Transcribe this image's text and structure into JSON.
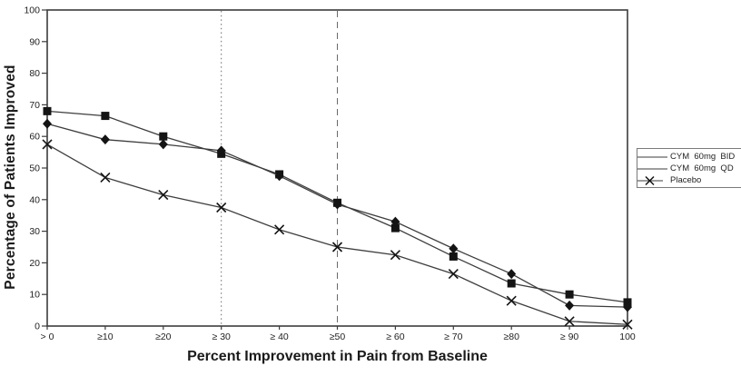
{
  "chart_data": {
    "type": "line",
    "title": "",
    "xlabel": "Percent Improvement in Pain from Baseline",
    "ylabel": "Percentage of Patients Improved",
    "categories": [
      "> 0",
      "≥10",
      "≥20",
      "≥ 30",
      "≥ 40",
      "≥50",
      "≥ 60",
      "≥ 70",
      "≥80",
      "≥ 90",
      "100"
    ],
    "series": [
      {
        "name": "CYM  60mg  BID",
        "marker": "square",
        "values": [
          68,
          66.5,
          60,
          54.5,
          48,
          39,
          31,
          22,
          13.5,
          10,
          7.5
        ]
      },
      {
        "name": "CYM  60mg  QD",
        "marker": "diamond",
        "values": [
          64,
          59,
          57.5,
          55.5,
          47.5,
          38.5,
          33,
          24.5,
          16.5,
          6.5,
          6
        ]
      },
      {
        "name": "Placebo",
        "marker": "x",
        "values": [
          57.5,
          47,
          41.5,
          37.5,
          30.5,
          25,
          22.5,
          16.5,
          8,
          1.5,
          0.5
        ]
      }
    ],
    "ylim": [
      0,
      100
    ],
    "ytick_step": 10,
    "reference_lines": [
      {
        "category_index": 3,
        "style": "dotted"
      },
      {
        "category_index": 5,
        "style": "dashed"
      }
    ],
    "grid": false,
    "legend_position": "right"
  },
  "colors": {
    "line": "#3d3d3d",
    "marker": "#141414",
    "frame": "#3c3c3c",
    "reference": "#6a6a6a",
    "text": "#1a1a1a"
  }
}
